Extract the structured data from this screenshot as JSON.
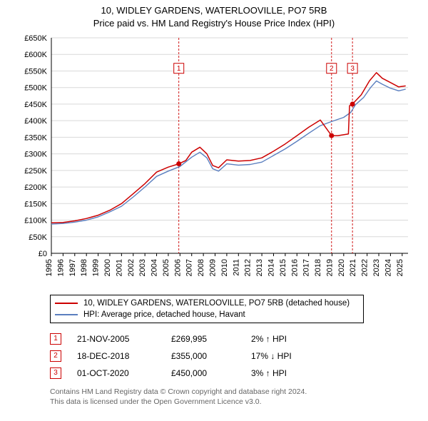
{
  "title": {
    "line1": "10, WIDLEY GARDENS, WATERLOOVILLE, PO7 5RB",
    "line2": "Price paid vs. HM Land Registry's House Price Index (HPI)",
    "fontsize": 13,
    "color": "#000000"
  },
  "chart": {
    "type": "line",
    "background_color": "#ffffff",
    "grid_color": "#d9d9d9",
    "axis_color": "#000000",
    "axis_fontsize": 11,
    "xlim": [
      1995,
      2025.5
    ],
    "ylim": [
      0,
      650000
    ],
    "xtick_step": 1,
    "xticks": [
      1995,
      1996,
      1997,
      1998,
      1999,
      2000,
      2001,
      2002,
      2003,
      2004,
      2005,
      2006,
      2007,
      2008,
      2009,
      2010,
      2011,
      2012,
      2013,
      2014,
      2015,
      2016,
      2017,
      2018,
      2019,
      2020,
      2021,
      2022,
      2023,
      2024,
      2025
    ],
    "ytick_step": 50000,
    "yticks": [
      0,
      50000,
      100000,
      150000,
      200000,
      250000,
      300000,
      350000,
      400000,
      450000,
      500000,
      550000,
      600000,
      650000
    ],
    "currency_prefix": "£",
    "thousands_suffix": "K",
    "series": [
      {
        "name": "price_paid",
        "label": "10, WIDLEY GARDENS, WATERLOOVILLE, PO7 5RB (detached house)",
        "color": "#cc0000",
        "line_width": 1.5,
        "data": [
          [
            1995,
            92000
          ],
          [
            1996,
            93000
          ],
          [
            1997,
            98000
          ],
          [
            1998,
            105000
          ],
          [
            1999,
            115000
          ],
          [
            2000,
            130000
          ],
          [
            2001,
            150000
          ],
          [
            2002,
            180000
          ],
          [
            2003,
            210000
          ],
          [
            2004,
            245000
          ],
          [
            2005,
            260000
          ],
          [
            2005.9,
            269995
          ],
          [
            2006.5,
            280000
          ],
          [
            2007,
            305000
          ],
          [
            2007.7,
            320000
          ],
          [
            2008.3,
            300000
          ],
          [
            2008.8,
            265000
          ],
          [
            2009.3,
            258000
          ],
          [
            2010,
            282000
          ],
          [
            2011,
            278000
          ],
          [
            2012,
            280000
          ],
          [
            2013,
            288000
          ],
          [
            2014,
            308000
          ],
          [
            2015,
            330000
          ],
          [
            2016,
            355000
          ],
          [
            2017,
            380000
          ],
          [
            2018,
            402000
          ],
          [
            2018.96,
            355000
          ],
          [
            2019.5,
            355000
          ],
          [
            2020.4,
            360000
          ],
          [
            2020.5,
            445000
          ],
          [
            2020.75,
            450000
          ],
          [
            2021.5,
            478000
          ],
          [
            2022.2,
            520000
          ],
          [
            2022.8,
            545000
          ],
          [
            2023.3,
            528000
          ],
          [
            2024,
            515000
          ],
          [
            2024.7,
            502000
          ],
          [
            2025.3,
            505000
          ]
        ]
      },
      {
        "name": "hpi",
        "label": "HPI: Average price, detached house, Havant",
        "color": "#5b7fbf",
        "line_width": 1.4,
        "data": [
          [
            1995,
            88000
          ],
          [
            1996,
            90000
          ],
          [
            1997,
            94000
          ],
          [
            1998,
            100000
          ],
          [
            1999,
            110000
          ],
          [
            2000,
            125000
          ],
          [
            2001,
            142000
          ],
          [
            2002,
            170000
          ],
          [
            2003,
            200000
          ],
          [
            2004,
            232000
          ],
          [
            2005,
            248000
          ],
          [
            2006,
            262000
          ],
          [
            2007,
            290000
          ],
          [
            2007.7,
            305000
          ],
          [
            2008.3,
            288000
          ],
          [
            2008.8,
            255000
          ],
          [
            2009.3,
            248000
          ],
          [
            2010,
            270000
          ],
          [
            2011,
            266000
          ],
          [
            2012,
            268000
          ],
          [
            2013,
            275000
          ],
          [
            2014,
            295000
          ],
          [
            2015,
            315000
          ],
          [
            2016,
            338000
          ],
          [
            2017,
            362000
          ],
          [
            2018,
            385000
          ],
          [
            2019,
            398000
          ],
          [
            2020,
            410000
          ],
          [
            2020.6,
            425000
          ],
          [
            2021,
            448000
          ],
          [
            2021.7,
            470000
          ],
          [
            2022.3,
            500000
          ],
          [
            2022.8,
            520000
          ],
          [
            2023.3,
            510000
          ],
          [
            2024,
            498000
          ],
          [
            2024.7,
            490000
          ],
          [
            2025.3,
            495000
          ]
        ]
      }
    ],
    "markers": [
      {
        "n": "1",
        "x": 2005.9,
        "y": 269995,
        "label_y": 558000,
        "line_color": "#cc0000",
        "line_dash": "3,2"
      },
      {
        "n": "2",
        "x": 2018.96,
        "y": 355000,
        "label_y": 558000,
        "line_color": "#cc0000",
        "line_dash": "3,2"
      },
      {
        "n": "3",
        "x": 2020.75,
        "y": 450000,
        "label_y": 558000,
        "line_color": "#cc0000",
        "line_dash": "3,2"
      }
    ],
    "marker_box": {
      "border_color": "#cc0000",
      "text_color": "#cc0000",
      "fill": "#ffffff",
      "size": 14,
      "fontsize": 10
    },
    "marker_dot": {
      "radius": 3.5,
      "color": "#cc0000"
    }
  },
  "legend": {
    "border_color": "#000000",
    "fontsize": 11.5,
    "items": [
      {
        "color": "#cc0000",
        "label": "10, WIDLEY GARDENS, WATERLOOVILLE, PO7 5RB (detached house)"
      },
      {
        "color": "#5b7fbf",
        "label": "HPI: Average price, detached house, Havant"
      }
    ]
  },
  "events": [
    {
      "n": "1",
      "date": "21-NOV-2005",
      "price": "£269,995",
      "diff": "2% ↑ HPI"
    },
    {
      "n": "2",
      "date": "18-DEC-2018",
      "price": "£355,000",
      "diff": "17% ↓ HPI"
    },
    {
      "n": "3",
      "date": "01-OCT-2020",
      "price": "£450,000",
      "diff": "3% ↑ HPI"
    }
  ],
  "footnote": {
    "line1": "Contains HM Land Registry data © Crown copyright and database right 2024.",
    "line2": "This data is licensed under the Open Government Licence v3.0.",
    "color": "#666666",
    "fontsize": 10.5
  }
}
